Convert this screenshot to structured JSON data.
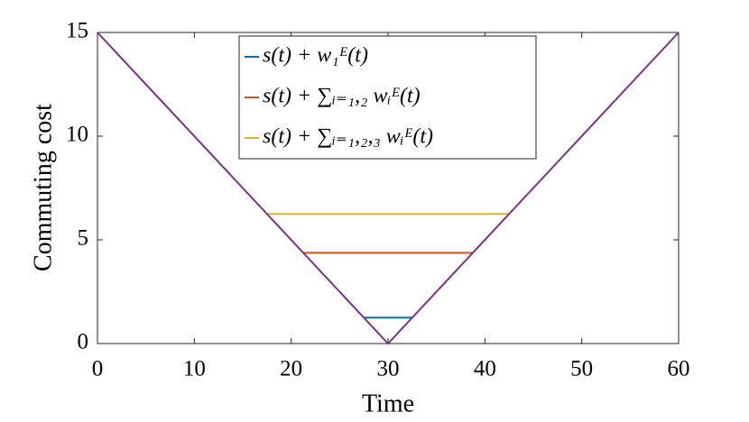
{
  "chart_data": {
    "type": "line",
    "xlabel": "Time",
    "ylabel": "Commuting cost",
    "xlim": [
      0,
      60
    ],
    "ylim": [
      0,
      15
    ],
    "xticks": [
      0,
      10,
      20,
      30,
      40,
      50,
      60
    ],
    "yticks": [
      0,
      5,
      10,
      15
    ],
    "legend": "top",
    "series": [
      {
        "name": "s(t) + w₁ᴱ(t)",
        "color": "#0072bd",
        "x": [
          27.5,
          32.5
        ],
        "values": [
          1.25,
          1.25
        ]
      },
      {
        "name": "s(t) + ∑ᵢ₌₁,₂ wᵢᴱ(t)",
        "color": "#d95319",
        "x": [
          21.25,
          38.75
        ],
        "values": [
          4.375,
          4.375
        ]
      },
      {
        "name": "s(t) + ∑ᵢ₌₁,₂,₃ wᵢᴱ(t)",
        "color": "#edb120",
        "x": [
          17.5,
          42.5
        ],
        "values": [
          6.25,
          6.25
        ]
      },
      {
        "color": "#7e2f8e",
        "x": [
          0,
          30,
          60
        ],
        "values": [
          15,
          0,
          15
        ]
      }
    ]
  }
}
